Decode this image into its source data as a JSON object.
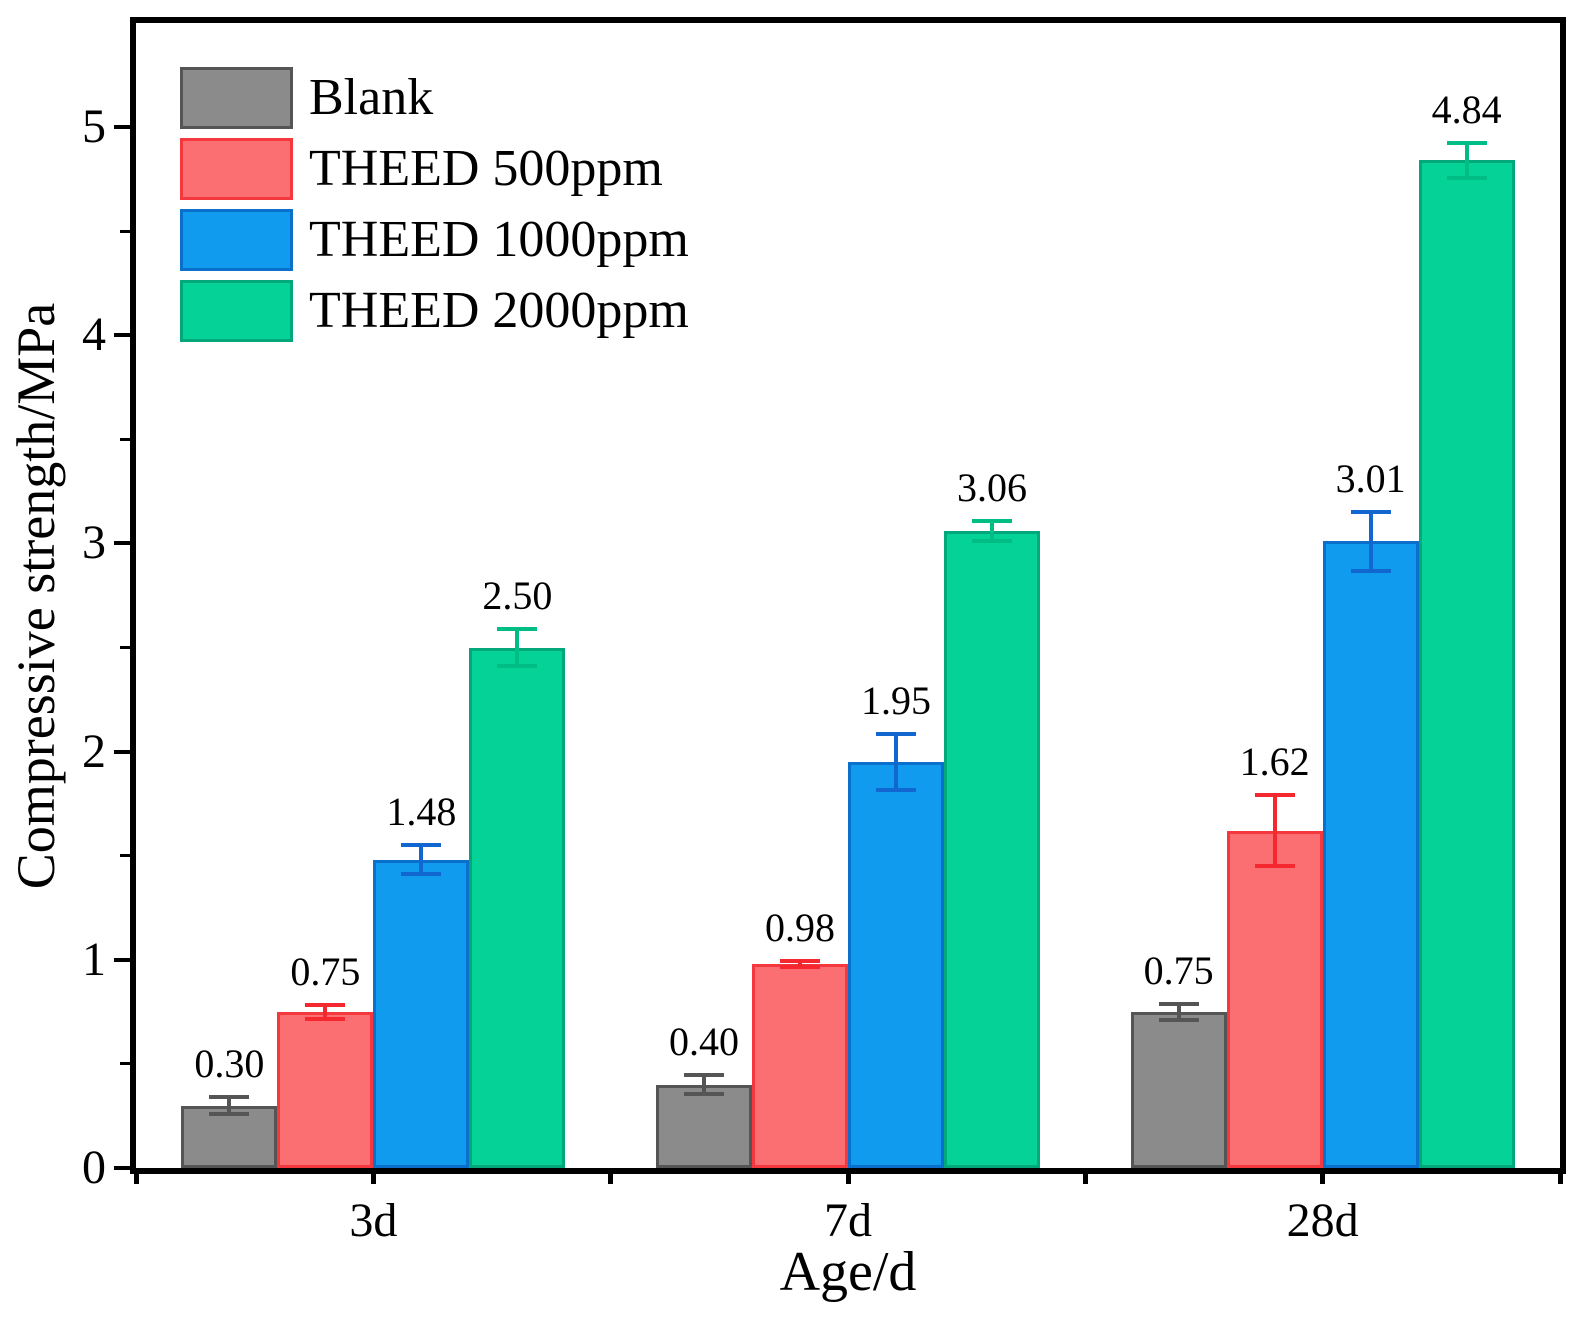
{
  "chart_data": {
    "type": "bar",
    "title": "",
    "xlabel": "Age/d",
    "ylabel": "Compressive strength/MPa",
    "categories": [
      "3d",
      "7d",
      "28d"
    ],
    "ylim": [
      0,
      5.5
    ],
    "yticks": [
      0,
      1,
      2,
      3,
      4,
      5
    ],
    "minor_ytick_step": 0.5,
    "grid": false,
    "legend_position": "top-left-inside",
    "frame": "full-box",
    "frame_color": "#000000",
    "background_color": "#ffffff",
    "text_color": "#000000",
    "series": [
      {
        "name": "Blank",
        "fill": "#8B8B8B",
        "edge": "#555555",
        "error_color": "#555555",
        "values": [
          0.3,
          0.4,
          0.75
        ],
        "errors": [
          0.04,
          0.045,
          0.04
        ],
        "labels": [
          "0.30",
          "0.40",
          "0.75"
        ]
      },
      {
        "name": "THEED 500ppm",
        "fill": "#FB6E71",
        "edge": "#F4383D",
        "error_color": "#F4282E",
        "values": [
          0.75,
          0.98,
          1.62
        ],
        "errors": [
          0.035,
          0.015,
          0.17
        ],
        "labels": [
          "0.75",
          "0.98",
          "1.62"
        ]
      },
      {
        "name": "THEED 1000ppm",
        "fill": "#119BEF",
        "edge": "#0A70CC",
        "error_color": "#1166D0",
        "values": [
          1.48,
          1.95,
          3.01
        ],
        "errors": [
          0.07,
          0.135,
          0.14
        ],
        "labels": [
          "1.48",
          "1.95",
          "3.01"
        ]
      },
      {
        "name": "THEED 2000ppm",
        "fill": "#04D297",
        "edge": "#00A87A",
        "error_color": "#00BC85",
        "values": [
          2.5,
          3.06,
          4.84
        ],
        "errors": [
          0.09,
          0.05,
          0.085
        ],
        "labels": [
          "2.50",
          "3.06",
          "4.84"
        ]
      }
    ]
  }
}
